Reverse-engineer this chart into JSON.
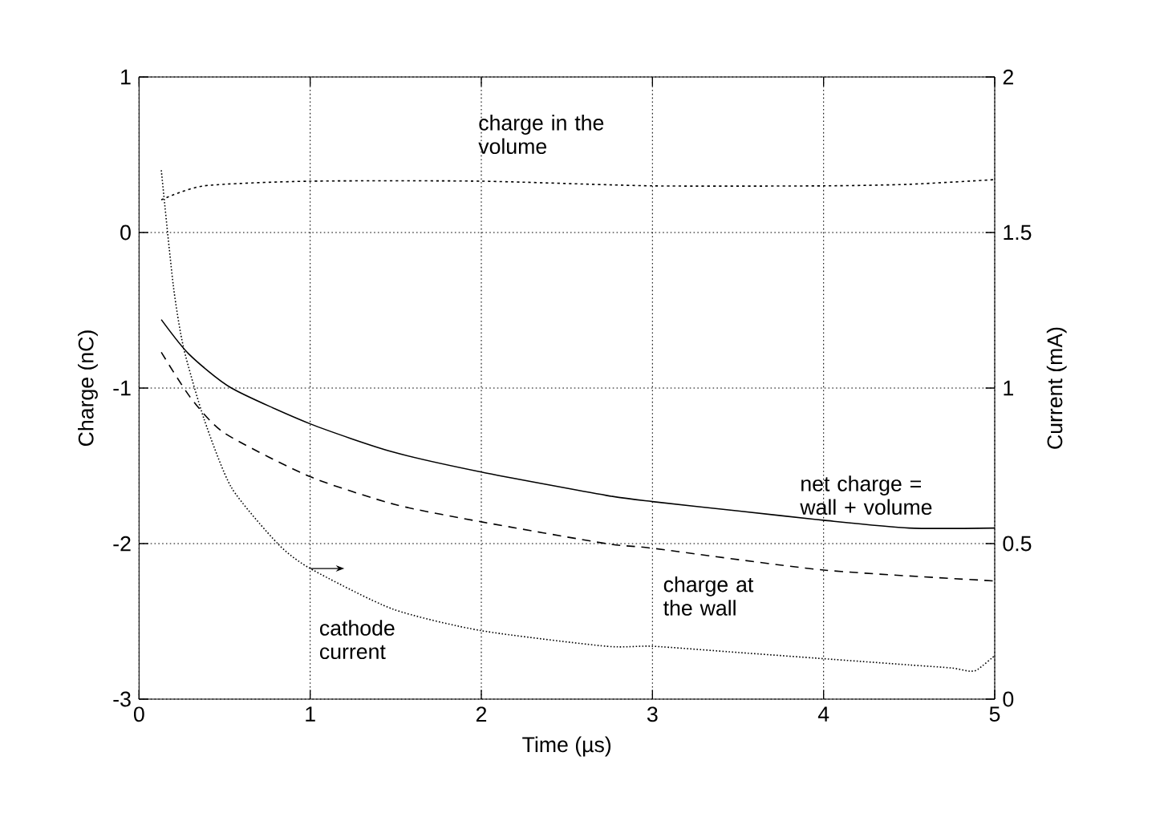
{
  "chart_data": {
    "type": "line",
    "xlabel": "Time (µs)",
    "ylabel": "Charge (nC)",
    "y2label": "Current (mA)",
    "xlim": [
      0,
      5
    ],
    "xticks": [
      0,
      1,
      2,
      3,
      4,
      5
    ],
    "ylim": [
      -3,
      1
    ],
    "yticks": [
      -3,
      -2,
      -1,
      0,
      1
    ],
    "y2lim": [
      0,
      2
    ],
    "y2ticks": [
      0,
      0.5,
      1,
      1.5,
      2
    ],
    "grid": true,
    "series": [
      {
        "color": "#000000",
        "line_style": "dotted",
        "x": [
          0.13,
          0.38,
          1.0,
          2.0,
          3.0,
          4.0,
          4.5,
          5.0
        ],
        "values": [
          0.21,
          0.3,
          0.33,
          0.33,
          0.3,
          0.3,
          0.31,
          0.34
        ]
      },
      {
        "color": "#000000",
        "line_style": "solid",
        "x": [
          0.13,
          0.29,
          0.54,
          1.0,
          1.48,
          2.0,
          2.73,
          3.0,
          3.5,
          4.0,
          4.5,
          5.0
        ],
        "values": [
          -0.56,
          -0.78,
          -1.0,
          -1.23,
          -1.41,
          -1.54,
          -1.69,
          -1.73,
          -1.79,
          -1.85,
          -1.9,
          -1.9
        ]
      },
      {
        "color": "#000000",
        "line_style": "dashed",
        "x": [
          0.13,
          0.3,
          0.5,
          1.0,
          1.5,
          2.0,
          2.73,
          3.0,
          4.0,
          5.0
        ],
        "values": [
          -0.77,
          -1.06,
          -1.29,
          -1.57,
          -1.75,
          -1.86,
          -2.0,
          -2.03,
          -2.17,
          -2.24
        ]
      },
      {
        "color": "#000000",
        "line_style": "dotted",
        "axis": "y2",
        "x": [
          0.13,
          0.2,
          0.26,
          0.38,
          0.54,
          0.81,
          1.0,
          1.48,
          2.0,
          2.73,
          3.0,
          3.5,
          4.0,
          4.5,
          4.75,
          4.85,
          4.9,
          5.0
        ],
        "values": [
          1.7,
          1.33,
          1.13,
          0.9,
          0.68,
          0.5,
          0.42,
          0.29,
          0.22,
          0.17,
          0.17,
          0.15,
          0.13,
          0.11,
          0.1,
          0.09,
          0.095,
          0.14
        ]
      }
    ],
    "annotations": [
      "charge in the volume",
      "net charge = wall + volume",
      "charge at the wall",
      "cathode current"
    ]
  }
}
